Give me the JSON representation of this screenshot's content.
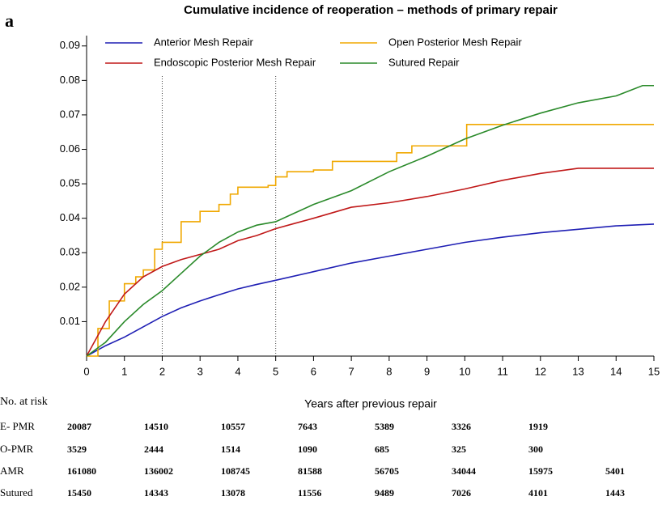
{
  "panel_label": "a",
  "chart_data": {
    "type": "line",
    "title": "Cumulative incidence of reoperation – methods of primary repair",
    "x_label": "Years after previous repair",
    "xlim": [
      0,
      15
    ],
    "xticks": [
      0,
      1,
      2,
      3,
      4,
      5,
      6,
      7,
      8,
      9,
      10,
      11,
      12,
      13,
      14,
      15
    ],
    "ylim": [
      0,
      0.093
    ],
    "yticks": [
      0.01,
      0.02,
      0.03,
      0.04,
      0.05,
      0.06,
      0.07,
      0.08,
      0.09
    ],
    "reference_lines_x": [
      2,
      5
    ],
    "series": [
      {
        "name": "Anterior Mesh Repair",
        "color": "#1f1fb4",
        "drawstyle": "line",
        "x": [
          0,
          0.5,
          1,
          1.5,
          2,
          2.5,
          3,
          3.5,
          4,
          4.5,
          5,
          6,
          7,
          8,
          9,
          10,
          11,
          12,
          13,
          14,
          15
        ],
        "values": [
          0,
          0.003,
          0.0055,
          0.0085,
          0.0115,
          0.014,
          0.016,
          0.0178,
          0.0195,
          0.0208,
          0.022,
          0.0245,
          0.027,
          0.029,
          0.031,
          0.033,
          0.0345,
          0.0358,
          0.0368,
          0.0378,
          0.0383
        ]
      },
      {
        "name": "Open Posterior Mesh Repair",
        "color": "#f0a800",
        "drawstyle": "steps",
        "x": [
          0,
          0.3,
          0.6,
          1,
          1.3,
          1.5,
          1.8,
          2,
          2.5,
          3,
          3.5,
          3.8,
          4,
          4.8,
          5,
          5.3,
          6,
          6.5,
          8,
          8.2,
          8.6,
          10,
          10.05,
          15
        ],
        "values": [
          0,
          0.008,
          0.016,
          0.021,
          0.023,
          0.025,
          0.031,
          0.033,
          0.039,
          0.042,
          0.044,
          0.047,
          0.049,
          0.0495,
          0.052,
          0.0535,
          0.054,
          0.0565,
          0.0565,
          0.059,
          0.061,
          0.061,
          0.0672,
          0.0672
        ]
      },
      {
        "name": "Endoscopic Posterior Mesh Repair",
        "color": "#c01818",
        "drawstyle": "line",
        "x": [
          0,
          0.5,
          1,
          1.5,
          2,
          2.5,
          3,
          3.5,
          4,
          4.5,
          5,
          5.5,
          6,
          7,
          8,
          9,
          10,
          11,
          12,
          13,
          15
        ],
        "values": [
          0,
          0.01,
          0.018,
          0.023,
          0.026,
          0.028,
          0.0295,
          0.031,
          0.0335,
          0.035,
          0.037,
          0.0385,
          0.04,
          0.0432,
          0.0445,
          0.0463,
          0.0485,
          0.051,
          0.053,
          0.0545,
          0.0545
        ]
      },
      {
        "name": "Sutured Repair",
        "color": "#2a8a2a",
        "drawstyle": "line",
        "x": [
          0,
          0.5,
          1,
          1.5,
          2,
          2.5,
          3,
          3.5,
          4,
          4.5,
          5,
          5.5,
          6,
          7,
          8,
          9,
          10,
          11,
          12,
          13,
          14,
          14.7,
          15
        ],
        "values": [
          0,
          0.004,
          0.01,
          0.015,
          0.019,
          0.024,
          0.029,
          0.033,
          0.036,
          0.038,
          0.039,
          0.0415,
          0.044,
          0.048,
          0.0535,
          0.058,
          0.063,
          0.067,
          0.0705,
          0.0735,
          0.0755,
          0.0785,
          0.0785
        ]
      }
    ]
  },
  "risk_table": {
    "title": "No. at risk",
    "rows": [
      {
        "label": "E- PMR",
        "values": [
          20087,
          14510,
          10557,
          7643,
          5389,
          3326,
          1919
        ]
      },
      {
        "label": "O-PMR",
        "values": [
          3529,
          2444,
          1514,
          1090,
          685,
          325,
          300
        ]
      },
      {
        "label": "AMR",
        "values": [
          161080,
          136002,
          108745,
          81588,
          56705,
          34044,
          15975,
          5401
        ]
      },
      {
        "label": "Sutured",
        "values": [
          15450,
          14343,
          13078,
          11556,
          9489,
          7026,
          4101,
          1443
        ]
      }
    ]
  }
}
